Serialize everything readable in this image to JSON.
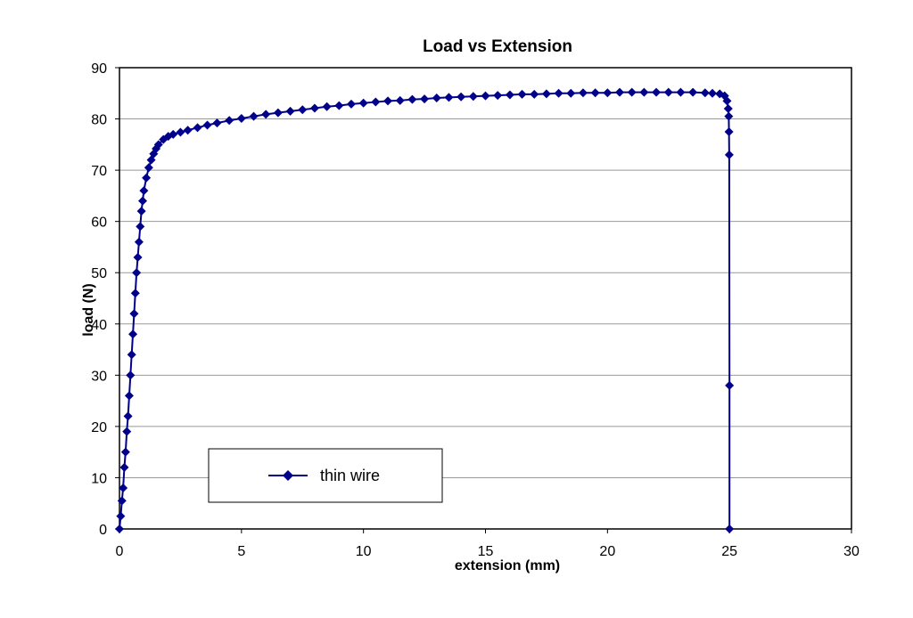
{
  "chart_data": {
    "type": "line",
    "title": "Load vs Extension",
    "xlabel": "extension  (mm)",
    "ylabel": "load (N)",
    "xlim": [
      0,
      30
    ],
    "ylim": [
      0,
      90
    ],
    "x_ticks": [
      0,
      5,
      10,
      15,
      20,
      25,
      30
    ],
    "y_ticks": [
      0,
      10,
      20,
      30,
      40,
      50,
      60,
      70,
      80,
      90
    ],
    "grid": "horizontal",
    "legend_position": "bottom-left",
    "series": [
      {
        "name": "thin wire",
        "color": "#00008B",
        "marker": "diamond",
        "x": [
          0,
          0.05,
          0.1,
          0.15,
          0.2,
          0.25,
          0.3,
          0.35,
          0.4,
          0.45,
          0.5,
          0.55,
          0.6,
          0.65,
          0.7,
          0.75,
          0.8,
          0.85,
          0.9,
          0.95,
          1.0,
          1.1,
          1.2,
          1.3,
          1.4,
          1.5,
          1.6,
          1.8,
          2.0,
          2.2,
          2.5,
          2.8,
          3.2,
          3.6,
          4.0,
          4.5,
          5.0,
          5.5,
          6.0,
          6.5,
          7.0,
          7.5,
          8.0,
          8.5,
          9.0,
          9.5,
          10.0,
          10.5,
          11.0,
          11.5,
          12.0,
          12.5,
          13.0,
          13.5,
          14.0,
          14.5,
          15.0,
          15.5,
          16.0,
          16.5,
          17.0,
          17.5,
          18.0,
          18.5,
          19.0,
          19.5,
          20.0,
          20.5,
          21.0,
          21.5,
          22.0,
          22.5,
          23.0,
          23.5,
          24.0,
          24.3,
          24.6,
          24.8,
          24.9,
          24.95,
          24.97,
          24.98,
          24.99,
          25.0,
          25.0
        ],
        "y": [
          0,
          2.5,
          5.5,
          8,
          12,
          15,
          19,
          22,
          26,
          30,
          34,
          38,
          42,
          46,
          50,
          53,
          56,
          59,
          62,
          64,
          66,
          68.5,
          70.5,
          72,
          73.2,
          74.2,
          75,
          76,
          76.6,
          77,
          77.4,
          77.8,
          78.3,
          78.8,
          79.2,
          79.7,
          80.1,
          80.5,
          80.9,
          81.2,
          81.5,
          81.8,
          82.1,
          82.4,
          82.6,
          82.9,
          83.1,
          83.3,
          83.5,
          83.6,
          83.8,
          83.9,
          84.1,
          84.2,
          84.3,
          84.4,
          84.5,
          84.6,
          84.7,
          84.8,
          84.8,
          84.9,
          85.0,
          85.0,
          85.1,
          85.1,
          85.1,
          85.2,
          85.2,
          85.2,
          85.2,
          85.2,
          85.2,
          85.2,
          85.1,
          85.0,
          84.9,
          84.5,
          83.5,
          82,
          80.5,
          77.5,
          73,
          28,
          0
        ]
      }
    ]
  }
}
